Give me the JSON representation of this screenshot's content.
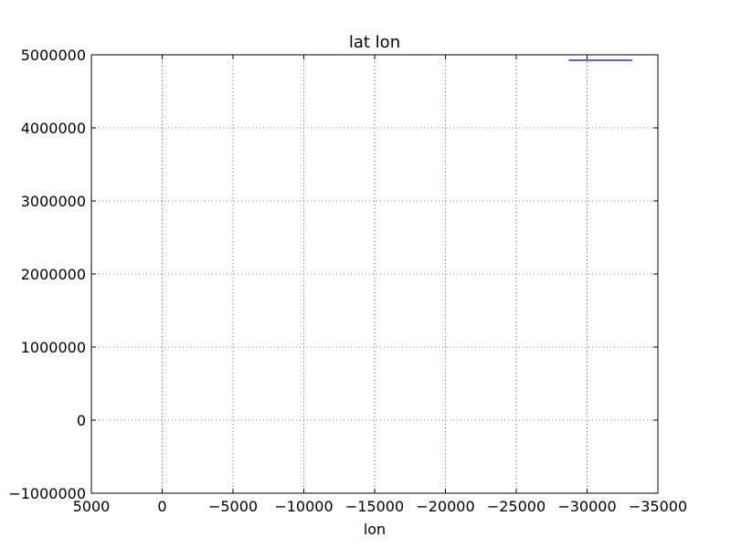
{
  "chart_data": {
    "type": "line",
    "title": "lat lon",
    "xlabel": "lon",
    "ylabel": "",
    "xlim": [
      5000,
      -35000
    ],
    "ylim": [
      -1000000,
      5000000
    ],
    "x_inverted": true,
    "grid": true,
    "grid_style": "dotted",
    "x_ticks": [
      5000,
      0,
      -5000,
      -10000,
      -15000,
      -20000,
      -25000,
      -30000,
      -35000
    ],
    "x_tick_labels": [
      "5000",
      "0",
      "−5000",
      "−10000",
      "−15000",
      "−20000",
      "−25000",
      "−30000",
      "−35000"
    ],
    "y_ticks": [
      5000000,
      4000000,
      3000000,
      2000000,
      1000000,
      0,
      -1000000
    ],
    "y_tick_labels": [
      "5000000",
      "4000000",
      "3000000",
      "2000000",
      "1000000",
      "0",
      "−1000000"
    ],
    "series": [
      {
        "color": "#0000bf",
        "x": [
          -28700,
          -33200
        ],
        "y": [
          4925000,
          4925000
        ]
      }
    ]
  }
}
